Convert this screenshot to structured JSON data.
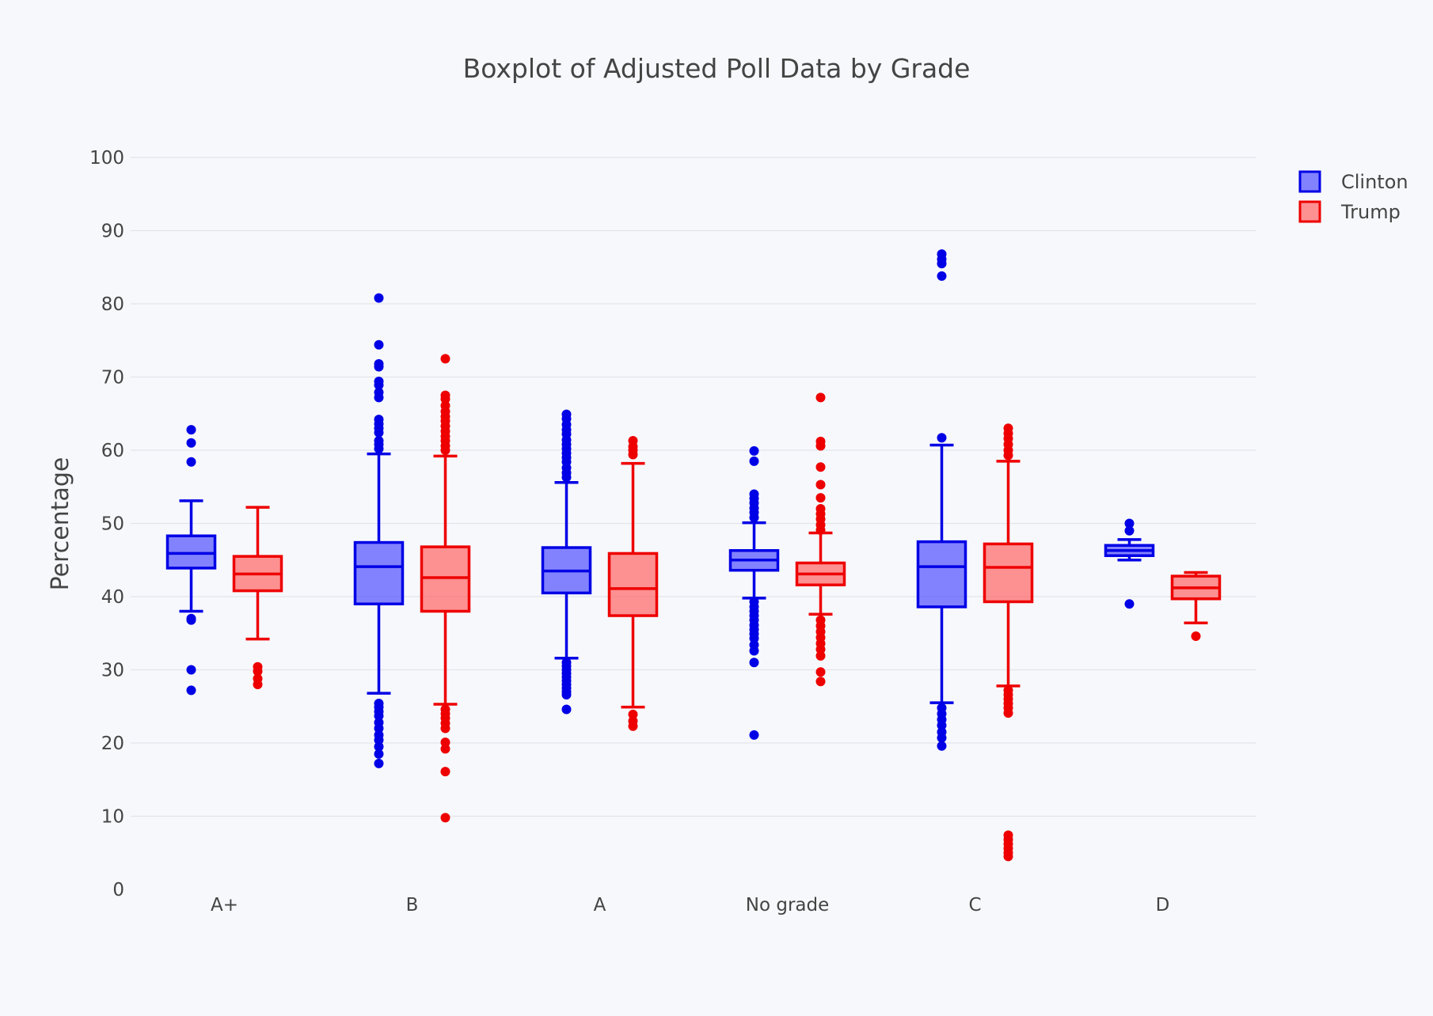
{
  "chart_data": {
    "type": "box",
    "title": "Boxplot of Adjusted Poll Data by Grade",
    "xlabel": "",
    "ylabel": "Percentage",
    "ylim": [
      0,
      100
    ],
    "yticks": [
      0,
      10,
      20,
      30,
      40,
      50,
      60,
      70,
      80,
      90,
      100
    ],
    "grid": true,
    "legend_position": "top-right",
    "categories": [
      "A+",
      "B",
      "A",
      "No grade",
      "C",
      "D"
    ],
    "series": [
      {
        "name": "Clinton",
        "color": "#0000e6",
        "fill": "rgba(80,80,255,0.7)",
        "boxes": [
          {
            "category": "A+",
            "lower_fence": 38.0,
            "q1": 43.9,
            "median": 45.9,
            "q3": 48.3,
            "upper_fence": 53.1,
            "outliers": [
              62.8,
              61.0,
              58.4,
              37.0,
              36.8,
              30.0,
              27.2
            ]
          },
          {
            "category": "B",
            "lower_fence": 26.8,
            "q1": 39.0,
            "median": 44.1,
            "q3": 47.4,
            "upper_fence": 59.5,
            "outliers": [
              80.8,
              74.4,
              71.8,
              71.4,
              69.4,
              68.9,
              67.9,
              67.2,
              64.2,
              63.6,
              63.0,
              62.4,
              61.3,
              60.8,
              60.2,
              25.4,
              24.9,
              24.3,
              23.7,
              22.8,
              22.0,
              21.1,
              20.4,
              19.5,
              18.5,
              17.2
            ]
          },
          {
            "category": "A",
            "lower_fence": 31.6,
            "q1": 40.5,
            "median": 43.5,
            "q3": 46.7,
            "upper_fence": 55.6,
            "outliers": [
              64.9,
              64.3,
              63.5,
              62.8,
              62.2,
              61.4,
              60.8,
              60.2,
              59.6,
              59.0,
              58.4,
              57.6,
              56.9,
              56.3,
              31.0,
              30.5,
              30.0,
              29.5,
              29.0,
              28.5,
              28.0,
              27.5,
              27.0,
              26.6,
              24.6
            ]
          },
          {
            "category": "No grade",
            "lower_fence": 39.8,
            "q1": 43.6,
            "median": 45.0,
            "q3": 46.3,
            "upper_fence": 50.1,
            "outliers": [
              59.9,
              58.5,
              54.0,
              53.4,
              52.8,
              52.1,
              51.5,
              50.8,
              39.3,
              38.6,
              38.0,
              37.4,
              36.8,
              36.1,
              35.5,
              34.9,
              34.3,
              33.4,
              32.6,
              31.0,
              21.1
            ]
          },
          {
            "category": "C",
            "lower_fence": 25.5,
            "q1": 38.6,
            "median": 44.1,
            "q3": 47.5,
            "upper_fence": 60.7,
            "outliers": [
              86.8,
              86.1,
              85.5,
              83.8,
              61.7,
              24.8,
              24.0,
              23.2,
              22.4,
              21.5,
              20.7,
              19.6
            ]
          },
          {
            "category": "D",
            "lower_fence": 45.0,
            "q1": 45.6,
            "median": 46.3,
            "q3": 47.0,
            "upper_fence": 47.8,
            "outliers": [
              50.0,
              49.0,
              39.0
            ]
          }
        ]
      },
      {
        "name": "Trump",
        "color": "#ee0000",
        "fill": "rgba(255,100,100,0.7)",
        "boxes": [
          {
            "category": "A+",
            "lower_fence": 34.2,
            "q1": 40.8,
            "median": 43.1,
            "q3": 45.5,
            "upper_fence": 52.2,
            "outliers": [
              30.4,
              29.8,
              28.8,
              28.0
            ]
          },
          {
            "category": "B",
            "lower_fence": 25.3,
            "q1": 38.0,
            "median": 42.6,
            "q3": 46.8,
            "upper_fence": 59.2,
            "outliers": [
              72.5,
              67.5,
              67.0,
              66.1,
              65.3,
              64.6,
              64.0,
              63.3,
              62.6,
              61.9,
              61.3,
              60.6,
              60.0,
              24.6,
              24.0,
              23.4,
              22.7,
              22.0,
              20.1,
              19.2,
              16.1,
              9.8
            ]
          },
          {
            "category": "A",
            "lower_fence": 24.9,
            "q1": 37.4,
            "median": 41.1,
            "q3": 45.9,
            "upper_fence": 58.2,
            "outliers": [
              61.3,
              60.5,
              60.0,
              59.4,
              23.9,
              23.0,
              22.3
            ]
          },
          {
            "category": "No grade",
            "lower_fence": 37.6,
            "q1": 41.6,
            "median": 43.1,
            "q3": 44.6,
            "upper_fence": 48.7,
            "outliers": [
              67.2,
              61.2,
              60.6,
              57.7,
              55.3,
              53.5,
              52.0,
              51.3,
              50.6,
              49.8,
              49.1,
              36.8,
              36.0,
              35.2,
              34.4,
              33.6,
              32.8,
              31.9,
              29.7,
              28.4
            ]
          },
          {
            "category": "C",
            "lower_fence": 27.8,
            "q1": 39.3,
            "median": 44.0,
            "q3": 47.2,
            "upper_fence": 58.5,
            "outliers": [
              63.0,
              62.3,
              61.6,
              60.8,
              60.0,
              59.3,
              27.2,
              26.6,
              26.0,
              25.4,
              24.8,
              24.1,
              7.4,
              6.8,
              6.2,
              5.6,
              5.0,
              4.5
            ]
          },
          {
            "category": "D",
            "lower_fence": 36.4,
            "q1": 39.7,
            "median": 41.2,
            "q3": 42.8,
            "upper_fence": 43.3,
            "outliers": [
              34.6
            ]
          }
        ]
      }
    ]
  }
}
